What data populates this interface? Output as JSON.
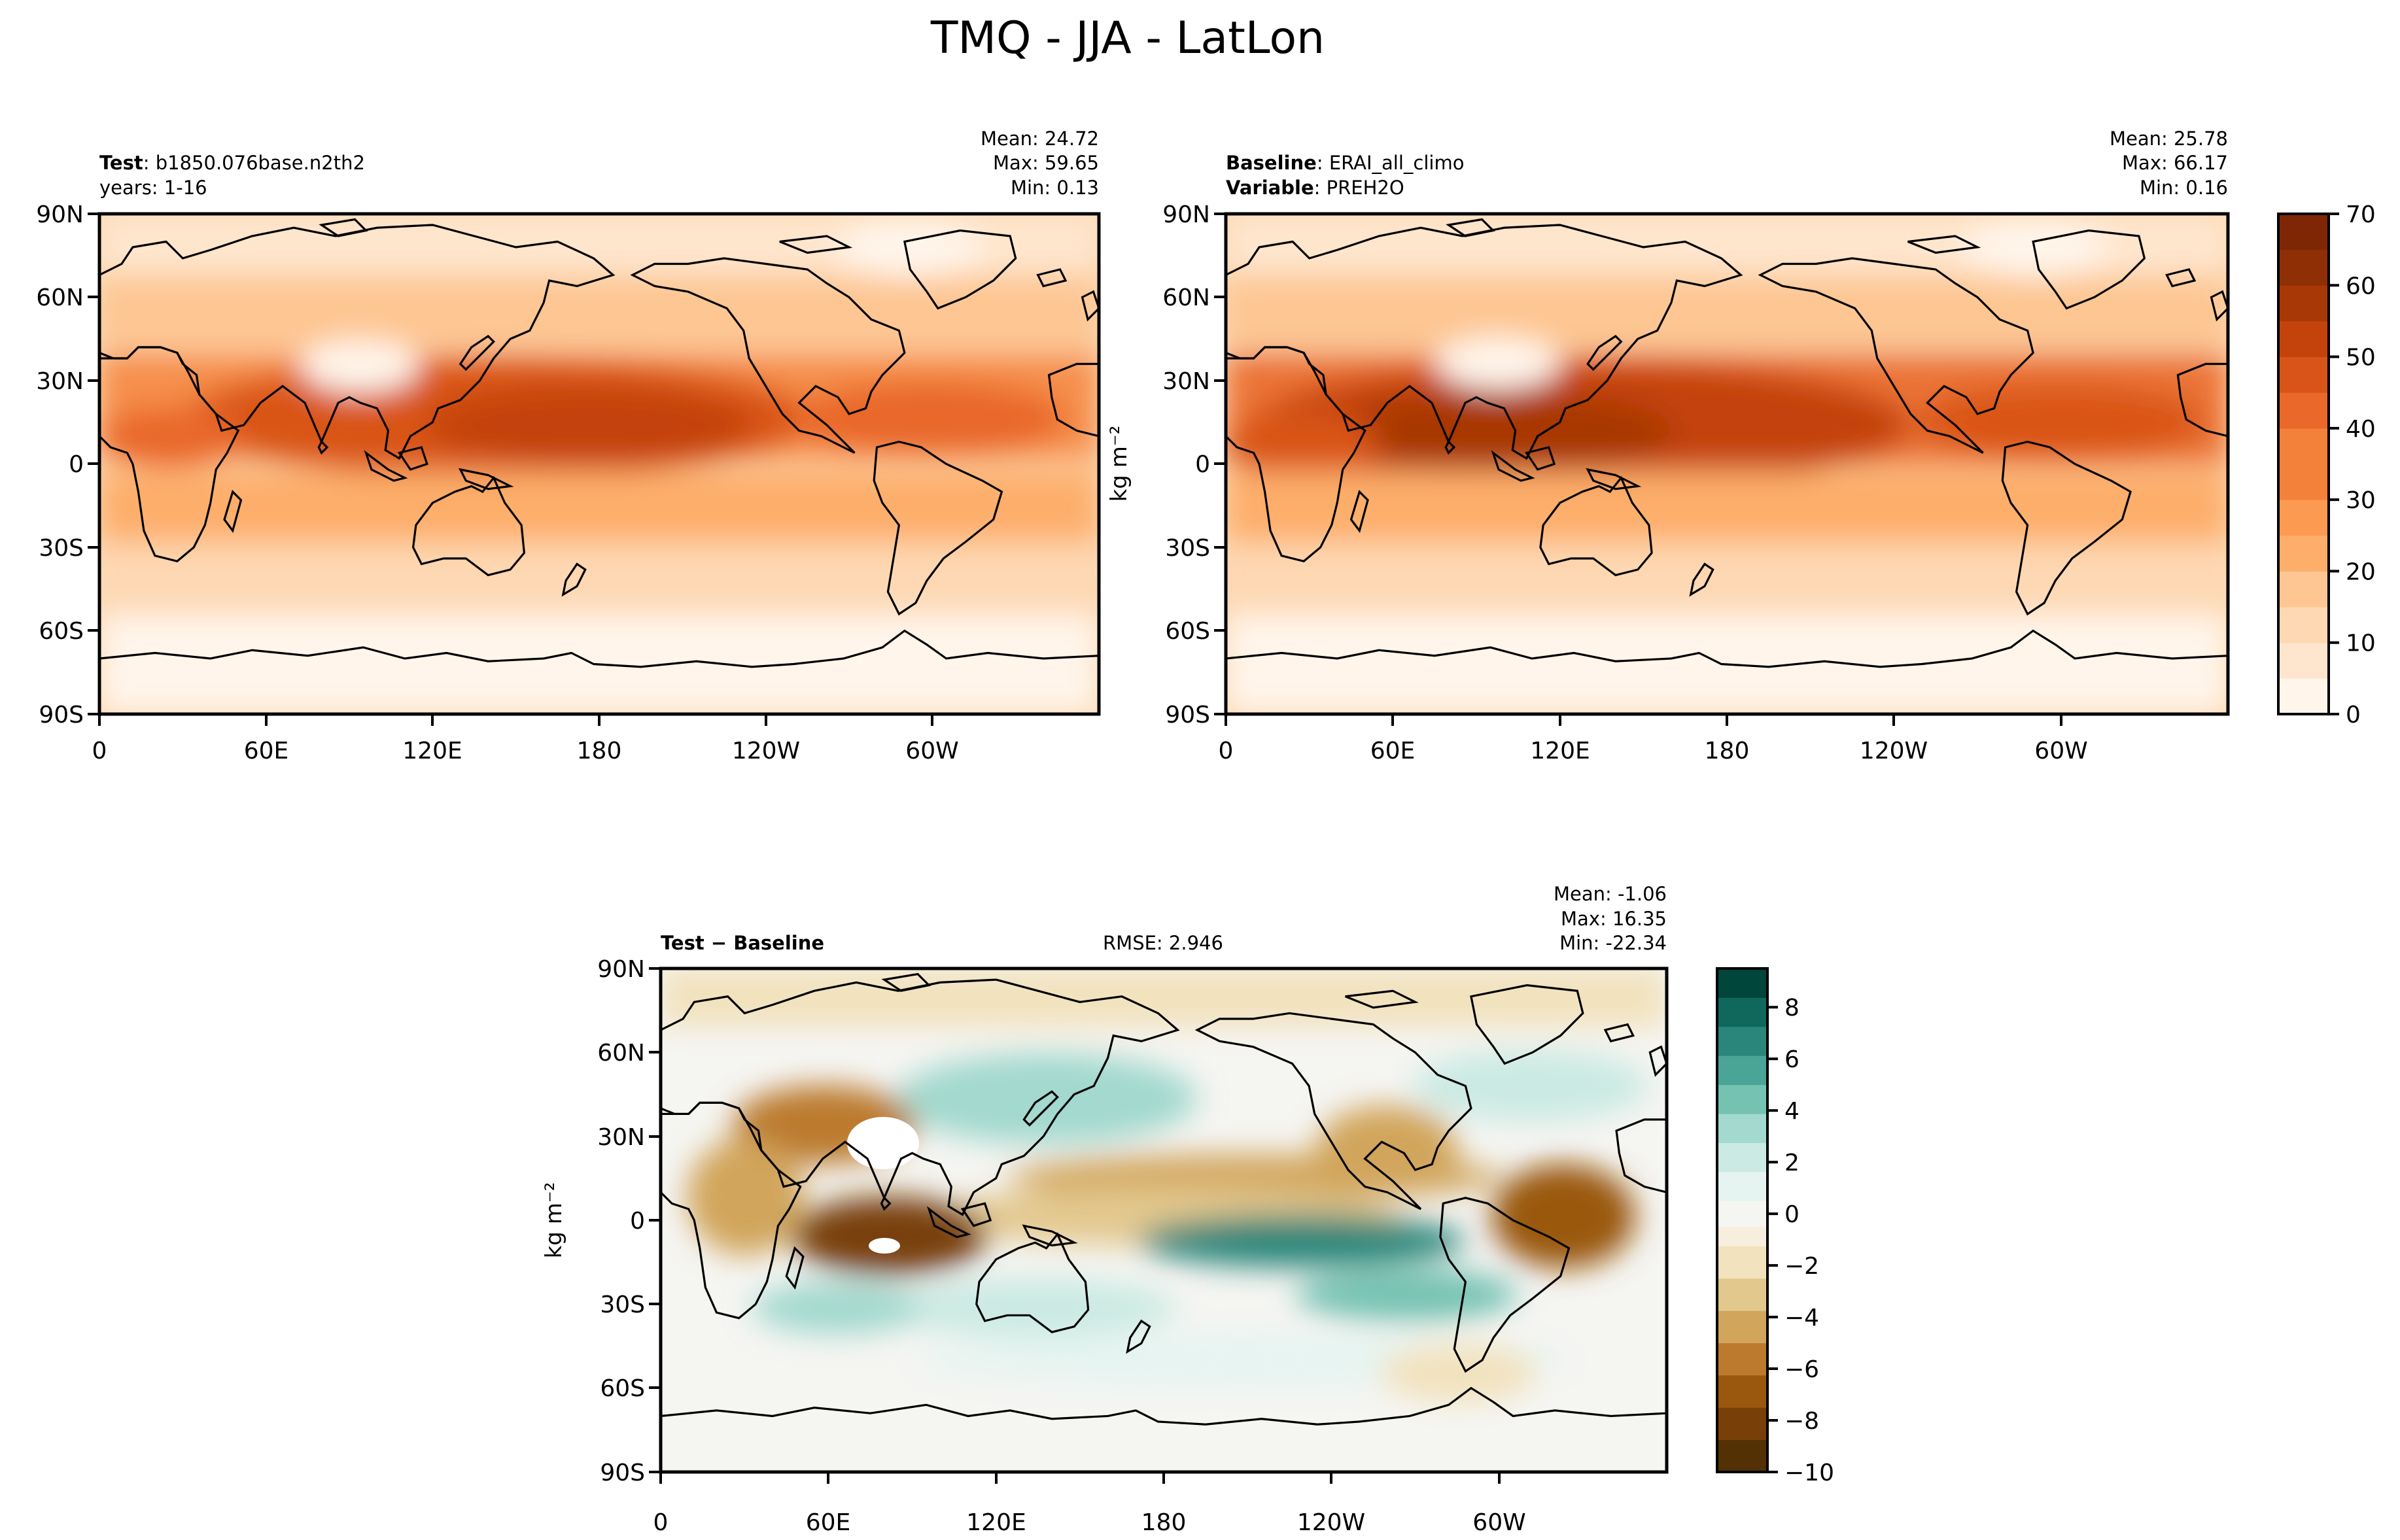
{
  "figure": {
    "suptitle": "TMQ - JJA - LatLon"
  },
  "colors": {
    "seq": [
      "#fff5eb",
      "#fee6ce",
      "#fdd8b2",
      "#fdc692",
      "#fdae6b",
      "#fd9a52",
      "#f4813a",
      "#e9682a",
      "#d95418",
      "#c4430c",
      "#a83806",
      "#8f2f05",
      "#7f2704"
    ],
    "div": {
      "low": [
        "#543005",
        "#784008",
        "#9a580f",
        "#bb7a2e",
        "#d1a55b",
        "#e3c88e",
        "#f2e2bd",
        "#f7eedd"
      ],
      "mid": "#f5f5f2",
      "high": [
        "#e6f4f1",
        "#cbeae3",
        "#a3d9ce",
        "#75c2b2",
        "#4aa597",
        "#2a867a",
        "#10685d",
        "#01463b"
      ]
    },
    "land_outline": "#000000"
  },
  "chart_data": [
    {
      "type": "heatmap",
      "panel": "test",
      "info_left": [
        {
          "label": "Test",
          "sep": ": ",
          "value": "b1850.076base.n2th2"
        },
        {
          "label": "",
          "sep": "",
          "value": "years: 1-16"
        }
      ],
      "stats": {
        "mean": "Mean: 24.72",
        "max": "Max: 59.65",
        "min": "Min:  0.13"
      },
      "stat_values": {
        "mean": 24.72,
        "max": 59.65,
        "min": 0.13
      },
      "x_ticks": [
        "0",
        "60E",
        "120E",
        "180",
        "120W",
        "60W"
      ],
      "y_ticks": [
        "90N",
        "60N",
        "30N",
        "0",
        "30S",
        "60S",
        "90S"
      ],
      "xlim": [
        0,
        360
      ],
      "ylim": [
        -90,
        90
      ],
      "ylabel": "",
      "grid": false
    },
    {
      "type": "heatmap",
      "panel": "baseline",
      "info_left": [
        {
          "label": "Baseline",
          "sep": ": ",
          "value": "ERAI_all_climo"
        },
        {
          "label": "Variable",
          "sep": ": ",
          "value": "PREH2O"
        }
      ],
      "stats": {
        "mean": "Mean: 25.78",
        "max": "Max: 66.17",
        "min": "Min:  0.16"
      },
      "stat_values": {
        "mean": 25.78,
        "max": 66.17,
        "min": 0.16
      },
      "x_ticks": [
        "0",
        "60E",
        "120E",
        "180",
        "120W",
        "60W"
      ],
      "y_ticks": [
        "90N",
        "60N",
        "30N",
        "0",
        "30S",
        "60S",
        "90S"
      ],
      "xlim": [
        0,
        360
      ],
      "ylim": [
        -90,
        90
      ],
      "ylabel": "kg m⁻²",
      "colorbar": {
        "ticks": [
          "0",
          "10",
          "20",
          "30",
          "40",
          "50",
          "60",
          "70"
        ],
        "vmin": 0,
        "vmax": 70,
        "levels": 14
      }
    },
    {
      "type": "heatmap",
      "panel": "difference",
      "info_left": [
        {
          "label": "Test − Baseline",
          "sep": "",
          "value": ""
        }
      ],
      "rmse": "RMSE: 2.946",
      "stats": {
        "mean": "Mean: -1.06",
        "max": "Max: 16.35",
        "min": "Min: -22.34"
      },
      "stat_values": {
        "mean": -1.06,
        "max": 16.35,
        "min": -22.34
      },
      "x_ticks": [
        "0",
        "60E",
        "120E",
        "180",
        "120W",
        "60W"
      ],
      "y_ticks": [
        "90N",
        "60N",
        "30N",
        "0",
        "30S",
        "60S",
        "90S"
      ],
      "xlim": [
        0,
        360
      ],
      "ylim": [
        -90,
        90
      ],
      "ylabel": "kg m⁻²",
      "colorbar": {
        "ticks": [
          "8",
          "6",
          "4",
          "2",
          "0",
          "−2",
          "−4",
          "−6",
          "−8",
          "−10"
        ],
        "vmin": -10,
        "vmax": 9.5
      }
    }
  ]
}
